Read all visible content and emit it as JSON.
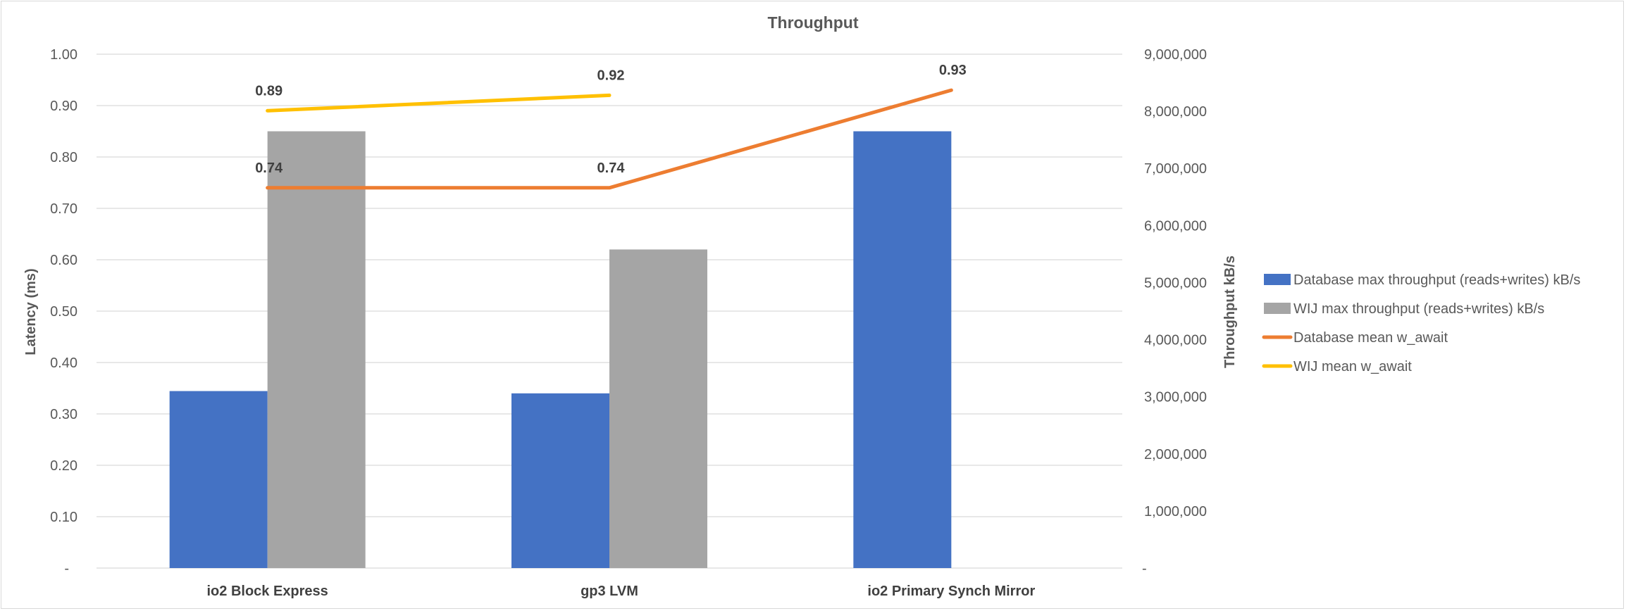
{
  "chart_data": {
    "type": "bar",
    "title": "Throughput",
    "categories": [
      "io2 Block Express",
      "gp3 LVM",
      "io2 Primary Synch Mirror"
    ],
    "y_left": {
      "label": "Latency (ms)",
      "ylim": [
        0,
        1.0
      ],
      "ticks": [
        "-",
        "0.10",
        "0.20",
        "0.30",
        "0.40",
        "0.50",
        "0.60",
        "0.70",
        "0.80",
        "0.90",
        "1.00"
      ]
    },
    "y_right": {
      "label": "Throughput kB/s",
      "ylim": [
        0,
        9000000
      ],
      "ticks": [
        "-",
        "1,000,000",
        "2,000,000",
        "3,000,000",
        "4,000,000",
        "5,000,000",
        "6,000,000",
        "7,000,000",
        "8,000,000",
        "9,000,000"
      ]
    },
    "series": [
      {
        "name": "Database max throughput (reads+writes) kB/s",
        "kind": "bar",
        "axis": "right",
        "color": "#4472C4",
        "values": [
          3100000,
          3060000,
          7650000
        ]
      },
      {
        "name": "WIJ max throughput (reads+writes) kB/s",
        "kind": "bar",
        "axis": "right",
        "color": "#A5A5A5",
        "values": [
          7650000,
          5580000,
          null
        ]
      },
      {
        "name": "Database mean w_await",
        "kind": "line",
        "axis": "left",
        "color": "#ED7D31",
        "values": [
          0.74,
          0.74,
          0.93
        ],
        "labels": [
          "0.74",
          "0.74",
          "0.93"
        ]
      },
      {
        "name": "WIJ mean w_await",
        "kind": "line",
        "axis": "left",
        "color": "#FFC000",
        "values": [
          0.89,
          0.92,
          null
        ],
        "labels": [
          "0.89",
          "0.92",
          ""
        ]
      }
    ],
    "grid": true,
    "legend": "right"
  }
}
